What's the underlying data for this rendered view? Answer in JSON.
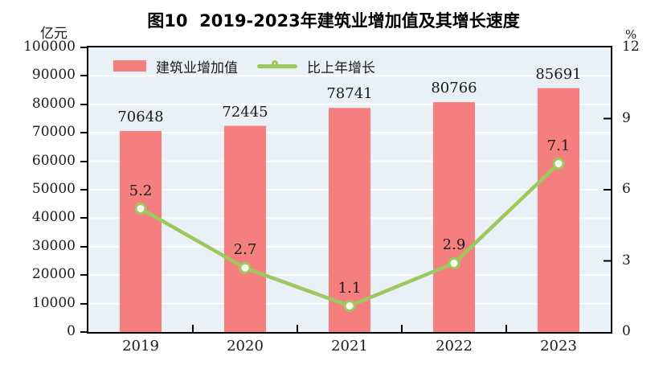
{
  "colors": {
    "bar": "#F57E7E",
    "line": "#9CC95E",
    "marker_fill": "#FDFFF2",
    "plot_bg": "#E9F1F6",
    "grid": "#FFFFFF",
    "axis": "#000000",
    "text": "#1A1A1A"
  },
  "chart_data": {
    "type": "bar+line",
    "title": "图10  2019-2023年建筑业增加值及其增长速度",
    "categories": [
      "2019",
      "2020",
      "2021",
      "2022",
      "2023"
    ],
    "series": [
      {
        "name": "建筑业增加值",
        "type": "bar",
        "axis": "left",
        "values": [
          70648,
          72445,
          78741,
          80766,
          85691
        ],
        "labels": [
          "70648",
          "72445",
          "78741",
          "80766",
          "85691"
        ]
      },
      {
        "name": "比上年增长",
        "type": "line",
        "axis": "right",
        "values": [
          5.2,
          2.7,
          1.1,
          2.9,
          7.1
        ],
        "labels": [
          "5.2",
          "2.7",
          "1.1",
          "2.9",
          "7.1"
        ]
      }
    ],
    "left_axis": {
      "unit": "亿元",
      "min": 0,
      "max": 100000,
      "step": 10000,
      "tick_labels": [
        "0",
        "10000",
        "20000",
        "30000",
        "40000",
        "50000",
        "60000",
        "70000",
        "80000",
        "90000",
        "100000"
      ]
    },
    "right_axis": {
      "unit": "%",
      "min": 0,
      "max": 12,
      "step": 3,
      "tick_labels": [
        "0",
        "3",
        "6",
        "9",
        "12"
      ]
    },
    "grid": true,
    "legend_position": "top-inside-left"
  }
}
